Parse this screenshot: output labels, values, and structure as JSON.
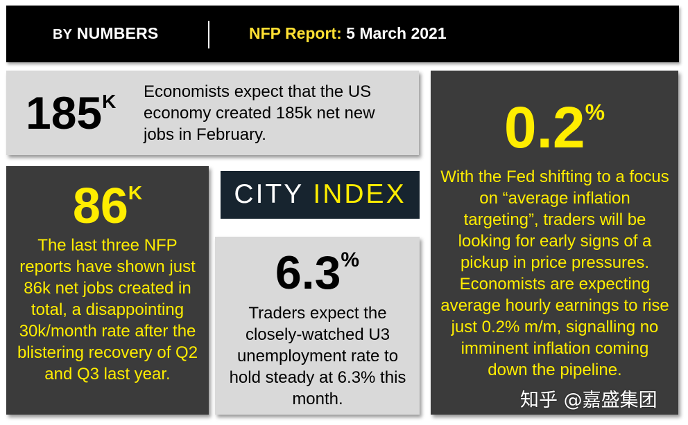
{
  "header": {
    "by": "BY",
    "numbers": "NUMBERS",
    "report_label": "NFP Report:",
    "report_date": "5 March 2021"
  },
  "stat_185": {
    "value": "185",
    "unit": "K",
    "text": "Economists expect that the US economy created 185k net new jobs in February."
  },
  "stat_86": {
    "value": "86",
    "unit": "K",
    "text": "The last three NFP reports have shown just 86k net jobs created in total, a disappointing 30k/month rate after the blistering recovery of Q2 and Q3 last year."
  },
  "logo": {
    "city": "CITY",
    "index": "INDEX"
  },
  "stat_63": {
    "value": "6.3",
    "unit": "%",
    "text": "Traders expect the closely-watched U3 unemployment rate to hold steady at 6.3% this month."
  },
  "stat_02": {
    "value": "0.2",
    "unit": "%",
    "text": "With the Fed shifting to a focus on “average inflation targeting”, traders will be looking for early signs of a pickup in price pressures. Economists are expecting average hourly earnings to rise just 0.2% m/m, signalling no imminent inflation coming down the pipeline."
  },
  "watermark": "知乎 @嘉盛集团",
  "colors": {
    "accent_yellow": "#ffed00",
    "dark_panel": "#3b3b3b",
    "light_panel": "#d9d9d9",
    "logo_bg": "#17242f"
  }
}
